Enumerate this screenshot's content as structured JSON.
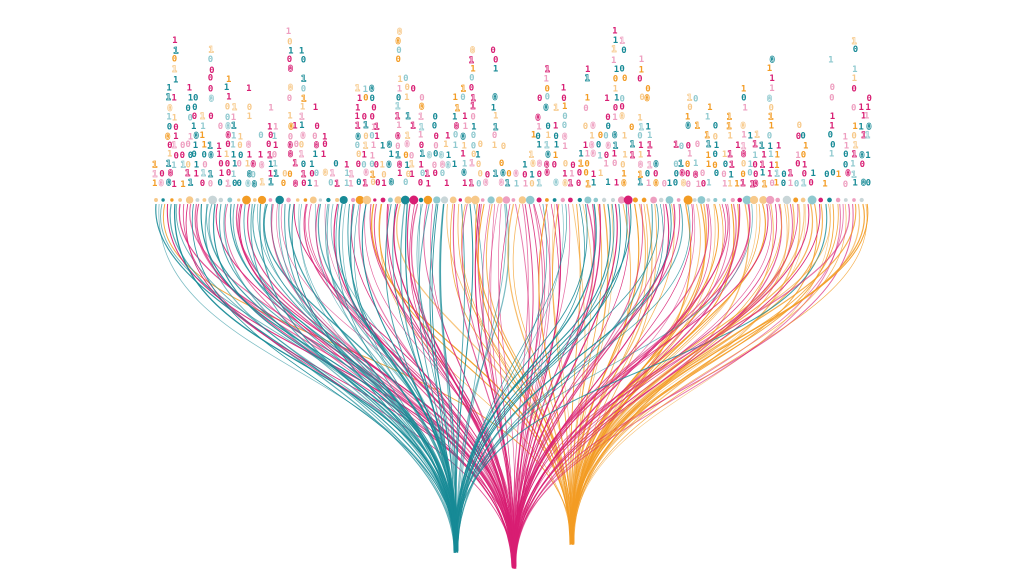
{
  "illustration": {
    "subject": "binary-data-stream-funnel",
    "palette": {
      "teal": "#178a96",
      "magenta": "#d81e73",
      "orange": "#f39c24",
      "light_teal": "#8fc9cf",
      "light_magenta": "#ee9fc0",
      "light_orange": "#f7c98a",
      "pale_gray": "#c9d6d8"
    },
    "digits": [
      "0",
      "1"
    ],
    "streams": [
      {
        "name": "teal-stream",
        "color": "#178a96"
      },
      {
        "name": "magenta-stream",
        "color": "#d81e73"
      },
      {
        "name": "orange-stream",
        "color": "#f39c24"
      }
    ]
  }
}
